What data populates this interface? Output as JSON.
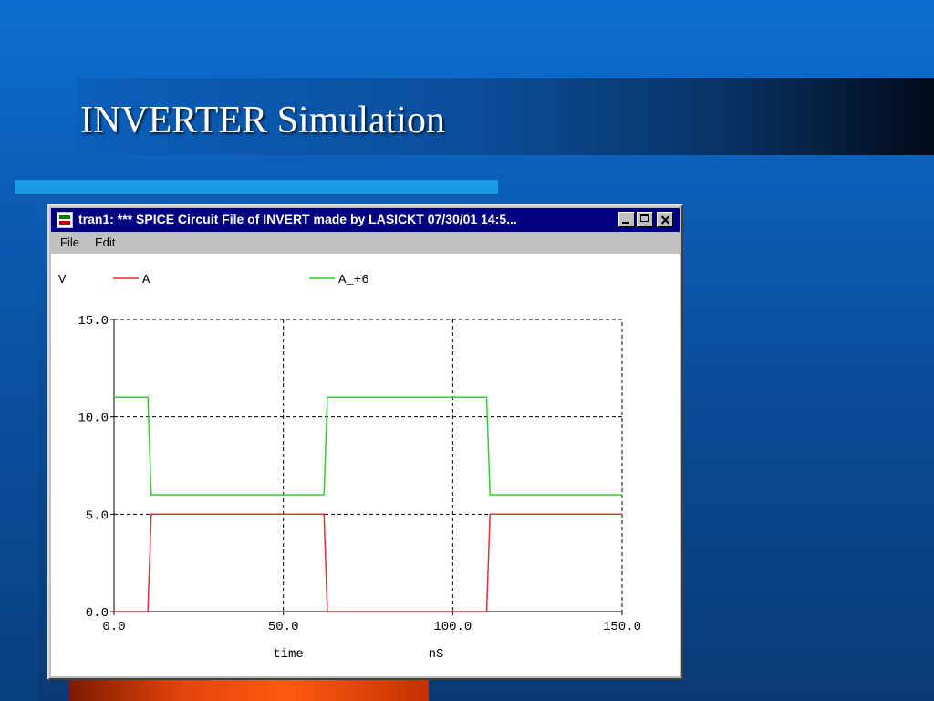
{
  "slide": {
    "title": "INVERTER Simulation"
  },
  "window": {
    "title": "tran1: *** SPICE Circuit File of INVERT made by LASICKT 07/30/01 14:5...",
    "menu": [
      "File",
      "Edit"
    ]
  },
  "chart_data": {
    "type": "line",
    "ylabel": "V",
    "xlabel": "time",
    "xunit": "nS",
    "xlim": [
      0,
      150
    ],
    "ylim": [
      0,
      15
    ],
    "xticks": [
      "0.0",
      "50.0",
      "100.0",
      "150.0"
    ],
    "yticks": [
      "0.0",
      "5.0",
      "10.0",
      "15.0"
    ],
    "grid": true,
    "legend_position": "top",
    "series": [
      {
        "name": "A",
        "color": "#e03030",
        "x": [
          0,
          10,
          11,
          62,
          63,
          110,
          111,
          150
        ],
        "y": [
          0,
          0,
          5,
          5,
          0,
          0,
          5,
          5
        ]
      },
      {
        "name": "A_+6",
        "color": "#33cc33",
        "x": [
          0,
          10,
          11,
          62,
          63,
          110,
          111,
          150
        ],
        "y": [
          11,
          11,
          6,
          6,
          11,
          11,
          6,
          6
        ]
      }
    ]
  }
}
